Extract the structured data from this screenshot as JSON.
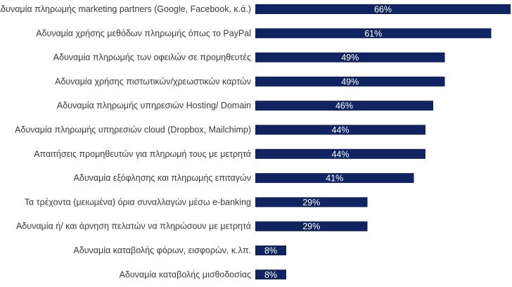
{
  "chart_data": {
    "type": "bar",
    "orientation": "horizontal",
    "bar_color": "#0f2460",
    "label_color": "#ffffff",
    "categories": [
      "Αδυναμία πληρωμής marketing partners (Google, Facebook, κ.ά.)",
      "Αδυναμία χρήσης μεθόδων πληρωμής όπως το PayPal",
      "Αδυναμία πληρωμής των οφειλών σε προμηθευτές",
      "Αδυναμία χρήσης πιστωτικών/χρεωστικών καρτών",
      "Αδυναμία πληρωμής υπηρεσιών Hosting/ Domain",
      "Αδυναμία πληρωμής υπηρεσιών cloud (Dropbox, Mailchimp)",
      "Απαιτήσεις προμηθευτών για πληρωμή τους με μετρητά",
      "Αδυναμία εξόφλησης και πληρωμής επιταγών",
      "Τα τρέχοντα (μειωμένα) όρια συναλλαγών μέσω e-banking",
      "Αδυναμία ή/ και άρνηση πελατών να πληρώσουν με μετρητά",
      "Αδυναμία καταβολής φόρων, εισφορών, κ.λπ.",
      "Αδυναμία καταβολής μισθοδοσίας"
    ],
    "values": [
      66,
      61,
      49,
      49,
      46,
      44,
      44,
      41,
      29,
      29,
      8,
      8
    ],
    "value_labels": [
      "66%",
      "61%",
      "49%",
      "49%",
      "46%",
      "44%",
      "44%",
      "41%",
      "29%",
      "29%",
      "8%",
      "8%"
    ],
    "xlim": [
      0,
      66
    ],
    "grid": false,
    "legend": "none"
  }
}
